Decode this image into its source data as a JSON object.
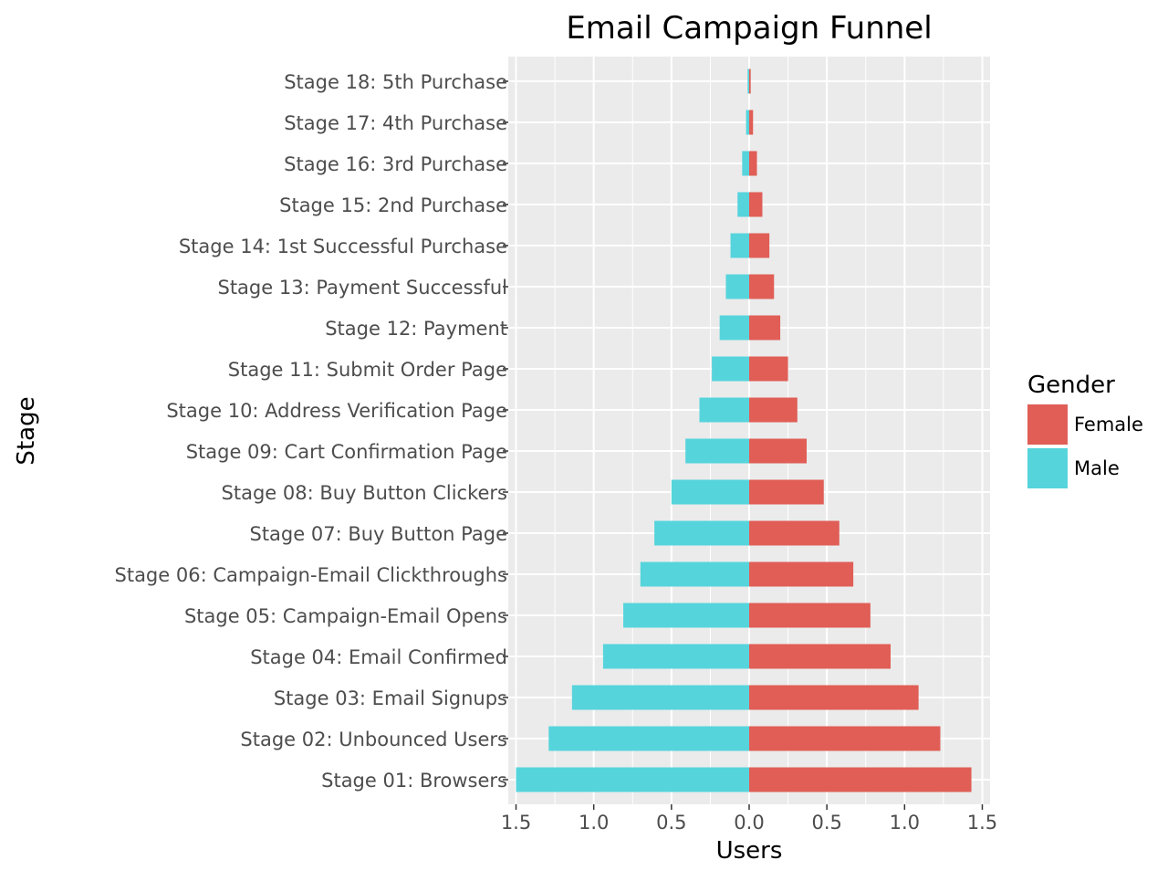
{
  "chart_data": {
    "type": "bar",
    "title": "Email Campaign Funnel",
    "xlabel": "Users",
    "ylabel": "Stage",
    "orientation": "horizontal",
    "xlim": [
      -1.55,
      1.55
    ],
    "x_ticks": [
      -1.5,
      -1.0,
      -0.5,
      0.0,
      0.5,
      1.0,
      1.5
    ],
    "x_tick_labels": [
      "1.5",
      "1.0",
      "0.5",
      "0.0",
      "0.5",
      "1.0",
      "1.5"
    ],
    "grid": true,
    "legend_position": "right",
    "legend_title": "Gender",
    "categories": [
      "Stage 01: Browsers",
      "Stage 02: Unbounced Users",
      "Stage 03: Email Signups",
      "Stage 04: Email Confirmed",
      "Stage 05: Campaign-Email Opens",
      "Stage 06: Campaign-Email Clickthroughs",
      "Stage 07: Buy Button Page",
      "Stage 08: Buy Button Clickers",
      "Stage 09: Cart Confirmation Page",
      "Stage 10: Address Verification Page",
      "Stage 11: Submit Order Page",
      "Stage 12: Payment",
      "Stage 13: Payment Successful",
      "Stage 14: 1st Successful Purchase",
      "Stage 15: 2nd Purchase",
      "Stage 16: 3rd Purchase",
      "Stage 17: 4th Purchase",
      "Stage 18: 5th Purchase"
    ],
    "series": [
      {
        "name": "Female",
        "color": "#e05e56",
        "values": [
          1.43,
          1.23,
          1.09,
          0.91,
          0.78,
          0.67,
          0.58,
          0.48,
          0.37,
          0.31,
          0.25,
          0.2,
          0.16,
          0.13,
          0.085,
          0.05,
          0.025,
          0.01
        ]
      },
      {
        "name": "Male",
        "color": "#56d4dc",
        "values": [
          -1.5,
          -1.29,
          -1.14,
          -0.94,
          -0.81,
          -0.7,
          -0.61,
          -0.5,
          -0.41,
          -0.32,
          -0.24,
          -0.19,
          -0.15,
          -0.12,
          -0.075,
          -0.045,
          -0.02,
          -0.01
        ]
      }
    ]
  }
}
